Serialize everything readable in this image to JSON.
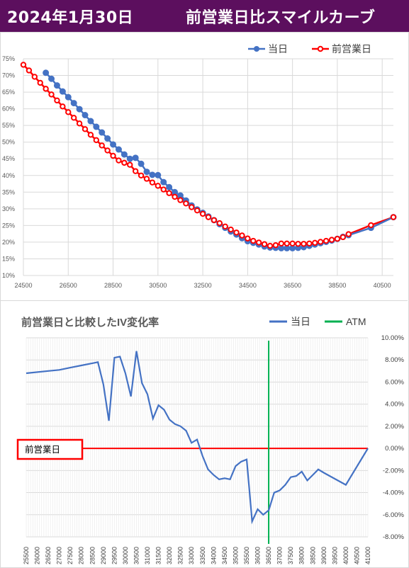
{
  "header": {
    "date": "2024年1月30日",
    "title": "前営業日比スマイルカーブ"
  },
  "colors": {
    "header_bg": "#5c0f5e",
    "today": "#4472c4",
    "prev": "#ff0000",
    "iv_change": "#4472c4",
    "atm": "#00b050",
    "grid": "#d9d9d9"
  },
  "chart_data": [
    {
      "type": "line",
      "legend_position": "top-right",
      "grid": true,
      "xlim": [
        24500,
        41000
      ],
      "ylim": [
        10,
        75
      ],
      "x_ticks": [
        "24500",
        "26500",
        "28500",
        "30500",
        "32500",
        "34500",
        "36500",
        "38500",
        "40500"
      ],
      "y_ticks": [
        "10%",
        "15%",
        "20%",
        "25%",
        "30%",
        "35%",
        "40%",
        "45%",
        "50%",
        "55%",
        "60%",
        "65%",
        "70%",
        "75%"
      ],
      "series": [
        {
          "name": "当日",
          "x": [
            25500,
            25750,
            26000,
            26250,
            26500,
            26750,
            27000,
            27250,
            27500,
            27750,
            28000,
            28250,
            28500,
            28750,
            29000,
            29250,
            29500,
            29750,
            30000,
            30250,
            30500,
            30750,
            31000,
            31250,
            31500,
            31750,
            32000,
            32250,
            32500,
            32750,
            33000,
            33250,
            33500,
            33750,
            34000,
            34250,
            34500,
            34750,
            35000,
            35250,
            35500,
            35750,
            36000,
            36250,
            36500,
            36750,
            37000,
            37250,
            37500,
            37750,
            38000,
            38250,
            38500,
            38750,
            39000,
            40000,
            41000
          ],
          "y": [
            70.8,
            69.0,
            67.0,
            65.2,
            63.5,
            61.7,
            59.9,
            58.1,
            56.3,
            54.6,
            52.9,
            51.1,
            49.3,
            47.8,
            46.3,
            45.0,
            45.3,
            43.5,
            41.1,
            40.2,
            40.1,
            38.0,
            36.5,
            35.0,
            34.0,
            32.5,
            31.0,
            29.8,
            28.8,
            27.7,
            26.6,
            25.4,
            24.3,
            23.2,
            22.3,
            21.2,
            20.3,
            19.8,
            19.3,
            18.7,
            18.4,
            18.3,
            18.2,
            18.2,
            18.2,
            18.3,
            18.5,
            18.9,
            19.3,
            19.7,
            20.1,
            20.5,
            21.0,
            21.6,
            22.1,
            24.3,
            27.5
          ]
        },
        {
          "name": "前営業日",
          "x": [
            24500,
            24750,
            25000,
            25250,
            25500,
            25750,
            26000,
            26250,
            26500,
            26750,
            27000,
            27250,
            27500,
            27750,
            28000,
            28250,
            28500,
            28750,
            29000,
            29250,
            29500,
            29750,
            30000,
            30250,
            30500,
            30750,
            31000,
            31250,
            31500,
            31750,
            32000,
            32250,
            32500,
            32750,
            33000,
            33250,
            33500,
            33750,
            34000,
            34250,
            34500,
            34750,
            35000,
            35250,
            35500,
            35750,
            36000,
            36250,
            36500,
            36750,
            37000,
            37250,
            37500,
            37750,
            38000,
            38250,
            38500,
            38750,
            39000,
            40000,
            41000
          ],
          "y": [
            73.2,
            71.5,
            69.6,
            67.8,
            66.0,
            64.3,
            62.5,
            60.7,
            59.0,
            57.3,
            55.6,
            53.9,
            52.2,
            50.6,
            49.0,
            47.5,
            45.9,
            44.5,
            43.8,
            43.2,
            41.3,
            40.0,
            39.0,
            37.9,
            36.9,
            35.8,
            34.7,
            33.6,
            32.6,
            31.6,
            30.5,
            29.5,
            28.5,
            27.5,
            26.6,
            25.7,
            24.7,
            23.8,
            22.9,
            22.0,
            21.1,
            20.4,
            19.9,
            19.4,
            18.9,
            19.1,
            19.6,
            19.6,
            19.6,
            19.5,
            19.5,
            19.6,
            19.8,
            20.1,
            20.4,
            20.7,
            21.0,
            21.5,
            22.4,
            25.1,
            27.5
          ]
        }
      ]
    },
    {
      "type": "line",
      "title": "前営業日と比較したIV変化率",
      "legend_position": "top-right",
      "grid": true,
      "xlim": [
        25500,
        41000
      ],
      "ylim": [
        -8,
        10
      ],
      "x_ticks": [
        "25500",
        "26000",
        "26500",
        "27000",
        "27500",
        "28000",
        "28500",
        "29000",
        "29500",
        "30000",
        "30500",
        "31000",
        "31500",
        "32000",
        "32500",
        "33000",
        "33500",
        "34000",
        "34500",
        "35000",
        "35500",
        "36000",
        "36500",
        "37000",
        "37500",
        "38000",
        "38500",
        "39000",
        "39500",
        "40000",
        "40500",
        "41000"
      ],
      "y_ticks": [
        "10.00%",
        "8.00%",
        "6.00%",
        "4.00%",
        "2.00%",
        "0.00%",
        "-2.00%",
        "-4.00%",
        "-6.00%",
        "-8.00%"
      ],
      "reference_label": "前営業日",
      "atm_name": "ATM",
      "atm_x": 36500,
      "series": [
        {
          "name": "当日",
          "x": [
            25500,
            26500,
            27000,
            27500,
            28000,
            28500,
            28750,
            29000,
            29250,
            29500,
            29750,
            30000,
            30250,
            30500,
            30750,
            31000,
            31250,
            31500,
            31750,
            32000,
            32250,
            32500,
            32750,
            33000,
            33250,
            33500,
            33750,
            34000,
            34250,
            34500,
            34750,
            35000,
            35250,
            35500,
            35750,
            36000,
            36250,
            36500,
            36750,
            37000,
            37250,
            37500,
            37750,
            38000,
            38250,
            38500,
            38750,
            39000,
            40000,
            41000
          ],
          "y": [
            6.8,
            7.0,
            7.1,
            7.3,
            7.5,
            7.7,
            7.8,
            5.8,
            2.5,
            8.2,
            8.3,
            6.8,
            4.7,
            8.8,
            5.9,
            4.9,
            2.7,
            3.9,
            3.5,
            2.6,
            2.2,
            2.0,
            1.6,
            0.5,
            0.8,
            -0.7,
            -1.9,
            -2.4,
            -2.8,
            -2.7,
            -2.8,
            -1.6,
            -1.2,
            -1.0,
            -6.6,
            -5.5,
            -6.0,
            -5.6,
            -4.0,
            -3.8,
            -3.3,
            -2.6,
            -2.5,
            -2.1,
            -2.9,
            -2.4,
            -1.9,
            -2.2,
            -3.3,
            0.0
          ]
        }
      ]
    }
  ]
}
